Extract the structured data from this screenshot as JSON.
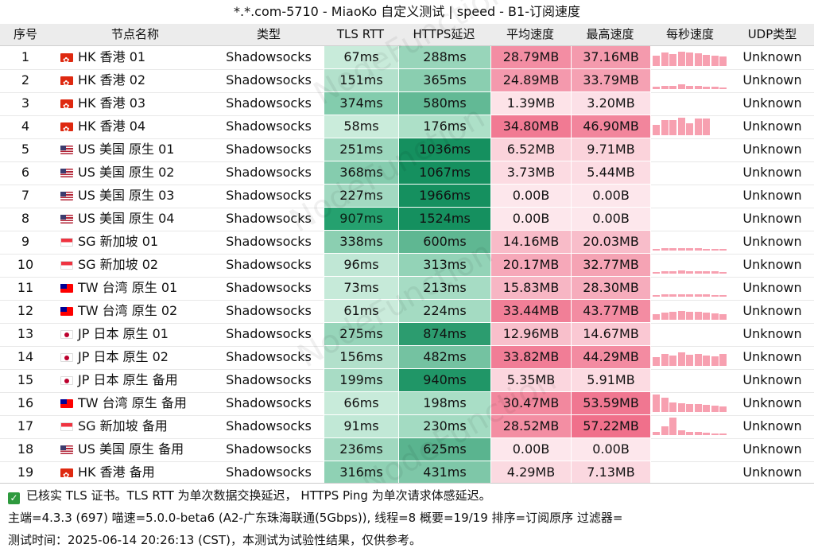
{
  "title": "*.*.com-5710 - MiaoKo 自定义测试 | speed - B1-订阅速度",
  "headers": [
    "序号",
    "节点名称",
    "类型",
    "TLS RTT",
    "HTTPS延迟",
    "平均速度",
    "最高速度",
    "每秒速度",
    "UDP类型"
  ],
  "watermark": "NodeFunction",
  "colors": {
    "tls_scale": [
      "#dff5e9",
      "#1e9e6a"
    ],
    "https_scale": [
      "#cdf1df",
      "#15905f"
    ],
    "speed_scale": [
      "#fde7ec",
      "#ef6a86"
    ],
    "spark": "#f7a0b0"
  },
  "rows": [
    {
      "idx": "1",
      "flag": "hk",
      "name": "HK 香港 01",
      "type": "Shadowsocks",
      "tls": "67ms",
      "https": "288ms",
      "avg": "28.79MB",
      "max": "37.16MB",
      "udp": "Unknown",
      "spark": [
        0.6,
        0.75,
        0.7,
        0.8,
        0.75,
        0.72,
        0.65,
        0.6,
        0.55
      ]
    },
    {
      "idx": "2",
      "flag": "hk",
      "name": "HK 香港 02",
      "type": "Shadowsocks",
      "tls": "151ms",
      "https": "365ms",
      "avg": "24.89MB",
      "max": "33.79MB",
      "udp": "Unknown",
      "spark": [
        0.15,
        0.2,
        0.2,
        0.25,
        0.2,
        0.2,
        0.15,
        0.15,
        0.1
      ]
    },
    {
      "idx": "3",
      "flag": "hk",
      "name": "HK 香港 03",
      "type": "Shadowsocks",
      "tls": "374ms",
      "https": "580ms",
      "avg": "1.39MB",
      "max": "3.20MB",
      "udp": "Unknown",
      "spark": [
        0,
        0,
        0,
        0,
        0,
        0,
        0,
        0,
        0
      ]
    },
    {
      "idx": "4",
      "flag": "hk",
      "name": "HK 香港 04",
      "type": "Shadowsocks",
      "tls": "58ms",
      "https": "176ms",
      "avg": "34.80MB",
      "max": "46.90MB",
      "udp": "Unknown",
      "spark": [
        0.6,
        0.85,
        0.85,
        1.0,
        0.7,
        0.95,
        0.95,
        0,
        0
      ]
    },
    {
      "idx": "5",
      "flag": "us",
      "name": "US 美国 原生 01",
      "type": "Shadowsocks",
      "tls": "251ms",
      "https": "1036ms",
      "avg": "6.52MB",
      "max": "9.71MB",
      "udp": "Unknown",
      "spark": [
        0,
        0,
        0,
        0,
        0,
        0,
        0,
        0,
        0
      ]
    },
    {
      "idx": "6",
      "flag": "us",
      "name": "US 美国 原生 02",
      "type": "Shadowsocks",
      "tls": "368ms",
      "https": "1067ms",
      "avg": "3.73MB",
      "max": "5.44MB",
      "udp": "Unknown",
      "spark": [
        0,
        0,
        0,
        0,
        0,
        0,
        0,
        0,
        0
      ]
    },
    {
      "idx": "7",
      "flag": "us",
      "name": "US 美国 原生 03",
      "type": "Shadowsocks",
      "tls": "227ms",
      "https": "1966ms",
      "avg": "0.00B",
      "max": "0.00B",
      "udp": "Unknown",
      "spark": [
        0,
        0,
        0,
        0,
        0,
        0,
        0,
        0,
        0
      ]
    },
    {
      "idx": "8",
      "flag": "us",
      "name": "US 美国 原生 04",
      "type": "Shadowsocks",
      "tls": "907ms",
      "https": "1524ms",
      "avg": "0.00B",
      "max": "0.00B",
      "udp": "Unknown",
      "spark": [
        0,
        0,
        0,
        0,
        0,
        0,
        0,
        0,
        0
      ]
    },
    {
      "idx": "9",
      "flag": "sg",
      "name": "SG 新加坡 01",
      "type": "Shadowsocks",
      "tls": "338ms",
      "https": "600ms",
      "avg": "14.16MB",
      "max": "20.03MB",
      "udp": "Unknown",
      "spark": [
        0.1,
        0.12,
        0.15,
        0.15,
        0.12,
        0.12,
        0.1,
        0.1,
        0.1
      ]
    },
    {
      "idx": "10",
      "flag": "sg",
      "name": "SG 新加坡 02",
      "type": "Shadowsocks",
      "tls": "96ms",
      "https": "313ms",
      "avg": "20.17MB",
      "max": "32.77MB",
      "udp": "Unknown",
      "spark": [
        0.1,
        0.15,
        0.15,
        0.2,
        0.15,
        0.15,
        0.12,
        0.12,
        0.1
      ]
    },
    {
      "idx": "11",
      "flag": "tw",
      "name": "TW 台湾 原生 01",
      "type": "Shadowsocks",
      "tls": "73ms",
      "https": "213ms",
      "avg": "15.83MB",
      "max": "28.30MB",
      "udp": "Unknown",
      "spark": [
        0.1,
        0.12,
        0.15,
        0.12,
        0.12,
        0.15,
        0.12,
        0.1,
        0.1
      ]
    },
    {
      "idx": "12",
      "flag": "tw",
      "name": "TW 台湾 原生 02",
      "type": "Shadowsocks",
      "tls": "61ms",
      "https": "224ms",
      "avg": "33.44MB",
      "max": "43.77MB",
      "udp": "Unknown",
      "spark": [
        0.3,
        0.4,
        0.45,
        0.5,
        0.45,
        0.45,
        0.4,
        0.35,
        0.3
      ]
    },
    {
      "idx": "13",
      "flag": "jp",
      "name": "JP 日本 原生 01",
      "type": "Shadowsocks",
      "tls": "275ms",
      "https": "874ms",
      "avg": "12.96MB",
      "max": "14.67MB",
      "udp": "Unknown",
      "spark": [
        0,
        0,
        0,
        0,
        0,
        0,
        0,
        0,
        0
      ]
    },
    {
      "idx": "14",
      "flag": "jp",
      "name": "JP 日本 原生 02",
      "type": "Shadowsocks",
      "tls": "156ms",
      "https": "482ms",
      "avg": "33.82MB",
      "max": "44.29MB",
      "udp": "Unknown",
      "spark": [
        0.5,
        0.7,
        0.6,
        0.75,
        0.65,
        0.7,
        0.6,
        0.55,
        0.7
      ]
    },
    {
      "idx": "15",
      "flag": "jp",
      "name": "JP 日本 原生 备用",
      "type": "Shadowsocks",
      "tls": "199ms",
      "https": "940ms",
      "avg": "5.35MB",
      "max": "5.91MB",
      "udp": "Unknown",
      "spark": [
        0,
        0,
        0,
        0,
        0,
        0,
        0,
        0,
        0
      ]
    },
    {
      "idx": "16",
      "flag": "tw",
      "name": "TW 台湾 原生 备用",
      "type": "Shadowsocks",
      "tls": "66ms",
      "https": "198ms",
      "avg": "30.47MB",
      "max": "53.59MB",
      "udp": "Unknown",
      "spark": [
        1.0,
        0.8,
        0.55,
        0.5,
        0.45,
        0.45,
        0.4,
        0.35,
        0.3
      ]
    },
    {
      "idx": "17",
      "flag": "sg",
      "name": "SG 新加坡 备用",
      "type": "Shadowsocks",
      "tls": "91ms",
      "https": "230ms",
      "avg": "28.52MB",
      "max": "57.22MB",
      "udp": "Unknown",
      "spark": [
        0.2,
        0.5,
        1.0,
        0.25,
        0.2,
        0.2,
        0.15,
        0.1,
        0.1
      ]
    },
    {
      "idx": "18",
      "flag": "us",
      "name": "US 美国 原生 备用",
      "type": "Shadowsocks",
      "tls": "236ms",
      "https": "625ms",
      "avg": "0.00B",
      "max": "0.00B",
      "udp": "Unknown",
      "spark": [
        0,
        0,
        0,
        0,
        0,
        0,
        0,
        0,
        0
      ]
    },
    {
      "idx": "19",
      "flag": "hk",
      "name": "HK 香港 备用",
      "type": "Shadowsocks",
      "tls": "316ms",
      "https": "431ms",
      "avg": "4.29MB",
      "max": "7.13MB",
      "udp": "Unknown",
      "spark": [
        0,
        0,
        0,
        0,
        0,
        0,
        0,
        0,
        0
      ]
    }
  ],
  "footer": {
    "line1": "已核实 TLS 证书。TLS RTT 为单次数据交换延迟， HTTPS Ping 为单次请求体感延迟。",
    "line2": "主端=4.3.3 (697) 喵速=5.0.0-beta6 (A2-广东珠海联通(5Gbps)), 线程=8 概要=19/19 排序=订阅原序 过滤器=",
    "line3": "测试时间：2025-06-14 20:26:13 (CST)，本测试为试验性结果，仅供参考。"
  }
}
